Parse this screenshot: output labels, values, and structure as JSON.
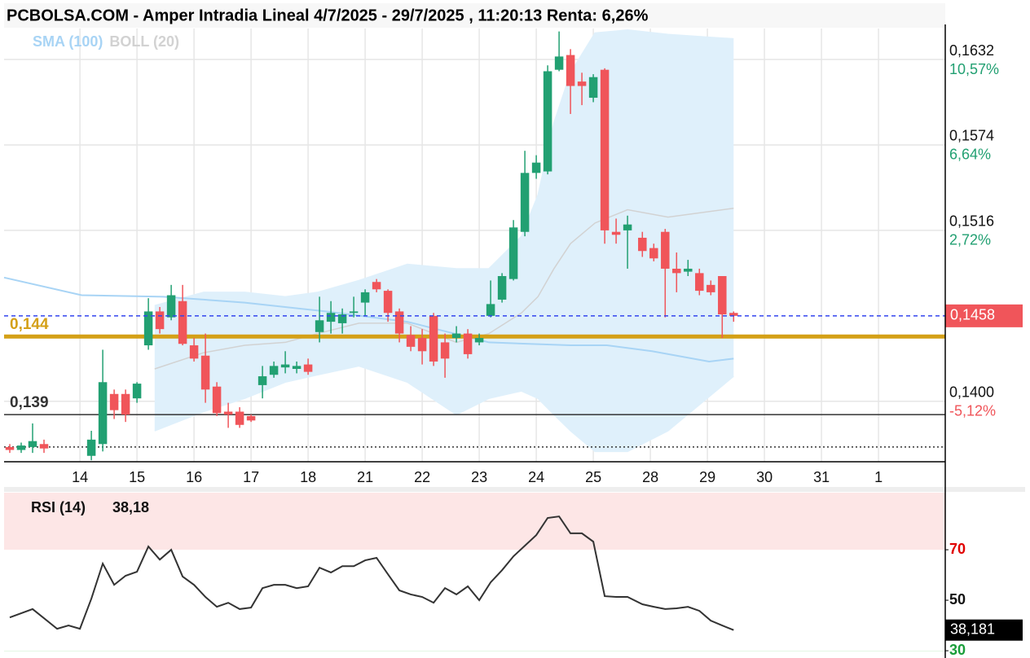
{
  "chart_data": [
    {
      "type": "candlestick",
      "title": "PCBOLSA.COM - Amper Intradia Lineal 4/7/2025 - 29/7/2025 , 11:20:13 Renta: 6,26%",
      "up_color": "#22a072",
      "down_color": "#f0555a",
      "grid": true,
      "xlim": [
        -1.33,
        15.17
      ],
      "xticks": [
        {
          "value": 0,
          "label": "14"
        },
        {
          "value": 1,
          "label": "15"
        },
        {
          "value": 2,
          "label": "16"
        },
        {
          "value": 3,
          "label": "17"
        },
        {
          "value": 4,
          "label": "18"
        },
        {
          "value": 5,
          "label": "21"
        },
        {
          "value": 6,
          "label": "22"
        },
        {
          "value": 7,
          "label": "23"
        },
        {
          "value": 8,
          "label": "24"
        },
        {
          "value": 9,
          "label": "25"
        },
        {
          "value": 10,
          "label": "28"
        },
        {
          "value": 11,
          "label": "29"
        },
        {
          "value": 12,
          "label": "30"
        },
        {
          "value": 13,
          "label": "31"
        },
        {
          "value": 14,
          "label": "1"
        }
      ],
      "ylim": [
        0.1359,
        0.1653
      ],
      "yticks": [
        {
          "value": 0.1632,
          "label": "0,1632"
        },
        {
          "value": 0.1574,
          "label": "0,1574"
        },
        {
          "value": 0.1516,
          "label": "0,1516"
        },
        {
          "value": 0.14,
          "label": "0,1400"
        }
      ],
      "ytick_changes": [
        {
          "value": 10.57,
          "label": "10,57%"
        },
        {
          "value": 6.64,
          "label": "6,64%"
        },
        {
          "value": 2.72,
          "label": "2,72%"
        },
        {
          "value": -5.12,
          "label": "-5,12%"
        }
      ],
      "x": [
        -1.23,
        -1.03,
        -0.83,
        -0.63,
        0.2,
        0.4,
        0.6,
        0.8,
        1,
        1.2,
        1.4,
        1.6,
        1.8,
        2,
        2.2,
        2.4,
        2.6,
        2.8,
        3,
        3.2,
        3.4,
        3.6,
        3.8,
        4,
        4.2,
        4.4,
        4.6,
        4.8,
        5,
        5.2,
        5.4,
        5.6,
        5.8,
        6,
        6.2,
        6.4,
        6.6,
        6.8,
        7,
        7.2,
        7.4,
        7.6,
        7.8,
        8,
        8.2,
        8.4,
        8.6,
        8.8,
        9,
        9.2,
        9.4,
        9.6,
        9.86,
        10.06,
        10.26,
        10.46,
        10.66,
        10.86,
        11.06,
        11.26,
        11.46
      ],
      "open": [
        0.1369,
        0.1367,
        0.1369,
        0.1371,
        0.1363,
        0.1371,
        0.1405,
        0.1405,
        0.1402,
        0.1438,
        0.1461,
        0.1457,
        0.1468,
        0.1438,
        0.1431,
        0.141,
        0.1393,
        0.1393,
        0.139,
        0.1411,
        0.1418,
        0.1423,
        0.1422,
        0.1425,
        0.1447,
        0.1454,
        0.1453,
        0.146,
        0.1467,
        0.1481,
        0.1475,
        0.1461,
        0.1445,
        0.1443,
        0.1458,
        0.144,
        0.1443,
        0.1446,
        0.144,
        0.1458,
        0.1469,
        0.1483,
        0.1515,
        0.1555,
        0.1556,
        0.1625,
        0.1635,
        0.1617,
        0.1606,
        0.1625,
        0.1515,
        0.1516,
        0.1511,
        0.1504,
        0.1515,
        0.149,
        0.1488,
        0.1487,
        0.1479,
        0.1485,
        0.146
      ],
      "high": [
        0.1371,
        0.1372,
        0.1385,
        0.1374,
        0.138,
        0.1435,
        0.1408,
        0.1408,
        0.1413,
        0.147,
        0.1464,
        0.1479,
        0.1479,
        0.1443,
        0.1446,
        0.1413,
        0.1399,
        0.1396,
        0.1391,
        0.1424,
        0.1427,
        0.1434,
        0.1427,
        0.1429,
        0.1471,
        0.1468,
        0.1463,
        0.1471,
        0.1476,
        0.1483,
        0.1476,
        0.1463,
        0.1451,
        0.1449,
        0.146,
        0.1446,
        0.1451,
        0.1449,
        0.1446,
        0.1482,
        0.1487,
        0.1523,
        0.157,
        0.1567,
        0.1628,
        0.1651,
        0.1639,
        0.1623,
        0.1622,
        0.1626,
        0.1524,
        0.1526,
        0.1515,
        0.1507,
        0.1517,
        0.1501,
        0.1496,
        0.149,
        0.1482,
        0.1485,
        0.1461
      ],
      "low": [
        0.1365,
        0.1365,
        0.1365,
        0.1365,
        0.136,
        0.1366,
        0.1388,
        0.1386,
        0.1399,
        0.1435,
        0.1446,
        0.1455,
        0.1438,
        0.1427,
        0.1399,
        0.139,
        0.1382,
        0.1382,
        0.1386,
        0.1402,
        0.1416,
        0.1419,
        0.1419,
        0.1418,
        0.144,
        0.1446,
        0.1446,
        0.1457,
        0.1458,
        0.1474,
        0.1454,
        0.144,
        0.1434,
        0.1425,
        0.1424,
        0.1416,
        0.144,
        0.1429,
        0.1438,
        0.1457,
        0.1467,
        0.1482,
        0.1512,
        0.1551,
        0.1554,
        0.1624,
        0.1595,
        0.1601,
        0.1603,
        0.1507,
        0.1507,
        0.149,
        0.1498,
        0.1495,
        0.1457,
        0.1474,
        0.1485,
        0.1472,
        0.1472,
        0.1443,
        0.1454
      ],
      "close": [
        0.1367,
        0.137,
        0.1373,
        0.1368,
        0.1374,
        0.1413,
        0.1394,
        0.1391,
        0.1412,
        0.1461,
        0.1449,
        0.1472,
        0.1439,
        0.1429,
        0.1408,
        0.1392,
        0.1391,
        0.1384,
        0.1387,
        0.1417,
        0.1424,
        0.1425,
        0.1424,
        0.142,
        0.1455,
        0.146,
        0.1459,
        0.1461,
        0.1474,
        0.1476,
        0.146,
        0.1446,
        0.1437,
        0.1434,
        0.1427,
        0.1429,
        0.1446,
        0.1432,
        0.1443,
        0.1466,
        0.1485,
        0.1518,
        0.1555,
        0.1562,
        0.1624,
        0.1634,
        0.1614,
        0.1614,
        0.162,
        0.1516,
        0.1513,
        0.152,
        0.1502,
        0.1497,
        0.149,
        0.1487,
        0.149,
        0.1475,
        0.1474,
        0.1459,
        0.1458
      ],
      "sma": {
        "name": "SMA (100)",
        "color": "#a8d4f5",
        "x": [
          -1.33,
          0.03,
          1.46,
          2.89,
          4.31,
          5.74,
          7.17,
          8.6,
          9.24,
          10.03,
          11.03,
          11.46
        ],
        "values": [
          0.1484,
          0.1472,
          0.1471,
          0.1467,
          0.1461,
          0.1454,
          0.144,
          0.1438,
          0.1438,
          0.1434,
          0.1427,
          0.1429
        ]
      },
      "bollinger": {
        "name": "BOLL (20)",
        "color": "#d2d2d2",
        "fill": "#dff0fb",
        "x": [
          1.31,
          2.17,
          2.89,
          3.6,
          4.17,
          4.89,
          5.74,
          6.6,
          7.17,
          7.74,
          8.03,
          8.31,
          8.6,
          9.03,
          9.6,
          10.31,
          11.46
        ],
        "upper": [
          0.1465,
          0.1474,
          0.1474,
          0.1471,
          0.1474,
          0.1482,
          0.1493,
          0.149,
          0.149,
          0.1512,
          0.154,
          0.1589,
          0.1623,
          0.165,
          0.1652,
          0.1649,
          0.1646
        ],
        "middle": [
          0.1422,
          0.1433,
          0.1438,
          0.144,
          0.1446,
          0.1453,
          0.1453,
          0.144,
          0.1446,
          0.146,
          0.1471,
          0.149,
          0.1507,
          0.1521,
          0.153,
          0.1525,
          0.1531
        ],
        "lower": [
          0.138,
          0.1393,
          0.1402,
          0.1413,
          0.1418,
          0.1424,
          0.1413,
          0.1391,
          0.1402,
          0.1407,
          0.1402,
          0.1391,
          0.138,
          0.1366,
          0.1366,
          0.138,
          0.1417
        ]
      },
      "levels": [
        {
          "value": 0.1444,
          "label": "0,144",
          "color": "#d4a017",
          "style": "solid"
        },
        {
          "value": 0.1391,
          "label": "0,139",
          "color": "#333333",
          "style": "solid"
        },
        {
          "value": 0.1369,
          "color": "#333333",
          "style": "dotted"
        }
      ],
      "last_price": {
        "value": 0.1458,
        "label": "0,1458",
        "color": "#f0555a",
        "line_color": "#3344ee"
      }
    },
    {
      "type": "line",
      "title": "RSI (14)",
      "subtitle": "38,18",
      "color": "#333333",
      "xlim": [
        -1.33,
        15.17
      ],
      "ylim": [
        29.7,
        92.6
      ],
      "yticks": [
        70,
        50,
        30
      ],
      "ytick_colors": [
        "#e00000",
        "#111111",
        "#1a9e3a"
      ],
      "zones": [
        {
          "from": 70,
          "to": 92.6,
          "color": "#fde6e6"
        },
        {
          "from": 29.7,
          "to": 30,
          "color": "#e3f5e3"
        }
      ],
      "x": [
        -1.23,
        -0.83,
        -0.4,
        -0.2,
        0,
        0.2,
        0.4,
        0.6,
        0.8,
        1,
        1.2,
        1.4,
        1.6,
        1.8,
        2,
        2.2,
        2.4,
        2.6,
        2.8,
        3,
        3.2,
        3.4,
        3.6,
        3.8,
        4,
        4.2,
        4.4,
        4.6,
        4.8,
        5,
        5.2,
        5.4,
        5.6,
        5.8,
        6,
        6.2,
        6.4,
        6.6,
        6.8,
        7,
        7.2,
        7.4,
        7.6,
        7.8,
        8,
        8.2,
        8.4,
        8.6,
        8.8,
        9,
        9.2,
        9.4,
        9.6,
        9.86,
        10.06,
        10.26,
        10.46,
        10.66,
        10.86,
        11.06,
        11.26,
        11.46
      ],
      "values": [
        43.2,
        46.5,
        38.7,
        40,
        38.7,
        50.6,
        64.5,
        56.1,
        59.7,
        61.3,
        71.3,
        66.1,
        70,
        59.4,
        56.1,
        51.3,
        47.4,
        49,
        46.5,
        47.1,
        54.8,
        56.1,
        56.1,
        54.8,
        55.5,
        62.9,
        61,
        63.5,
        63.5,
        65.8,
        66.8,
        60.3,
        53.9,
        52.3,
        51.3,
        49,
        54.8,
        52.3,
        55.5,
        50,
        57.1,
        61.9,
        67.4,
        71.6,
        75.8,
        82.6,
        83.2,
        76.5,
        76.5,
        73.2,
        51.6,
        51.3,
        51.3,
        48.4,
        47.4,
        46.5,
        46.8,
        47.4,
        45.8,
        41.9,
        40,
        38.18
      ],
      "last_value": {
        "value": 38.181,
        "label": "38,181",
        "color": "#000000"
      }
    }
  ]
}
